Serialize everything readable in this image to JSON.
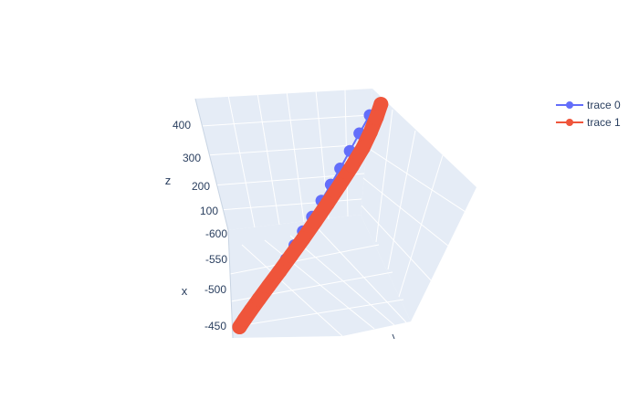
{
  "chart_data": {
    "type": "scatter3d",
    "axes": {
      "x": {
        "title": "x",
        "ticks": [
          "-450",
          "-500",
          "-550",
          "-600"
        ]
      },
      "z": {
        "title": "z",
        "ticks": [
          "100",
          "200",
          "300",
          "400"
        ]
      }
    },
    "legend_position": "top-right",
    "series": [
      {
        "name": "trace 0",
        "mode": "lines+markers",
        "color": "#636efa",
        "x": [
          -446,
          -455,
          -464,
          -474,
          -483,
          -493,
          -503,
          -513,
          -523,
          -534,
          -545,
          -556,
          -567,
          -578,
          -589,
          -601
        ],
        "z": [
          30,
          45,
          60,
          75,
          95,
          115,
          135,
          160,
          185,
          210,
          240,
          270,
          300,
          335,
          370,
          405
        ]
      },
      {
        "name": "trace 1",
        "mode": "lines+markers",
        "color": "#ef553b",
        "x": [
          -446,
          -452,
          -460,
          -470,
          -482,
          -496,
          -510,
          -525,
          -540,
          -555,
          -570,
          -585,
          -598,
          -606,
          -612,
          -616
        ],
        "z": [
          30,
          42,
          56,
          72,
          90,
          110,
          132,
          156,
          182,
          210,
          240,
          272,
          305,
          340,
          375,
          410
        ]
      }
    ]
  }
}
